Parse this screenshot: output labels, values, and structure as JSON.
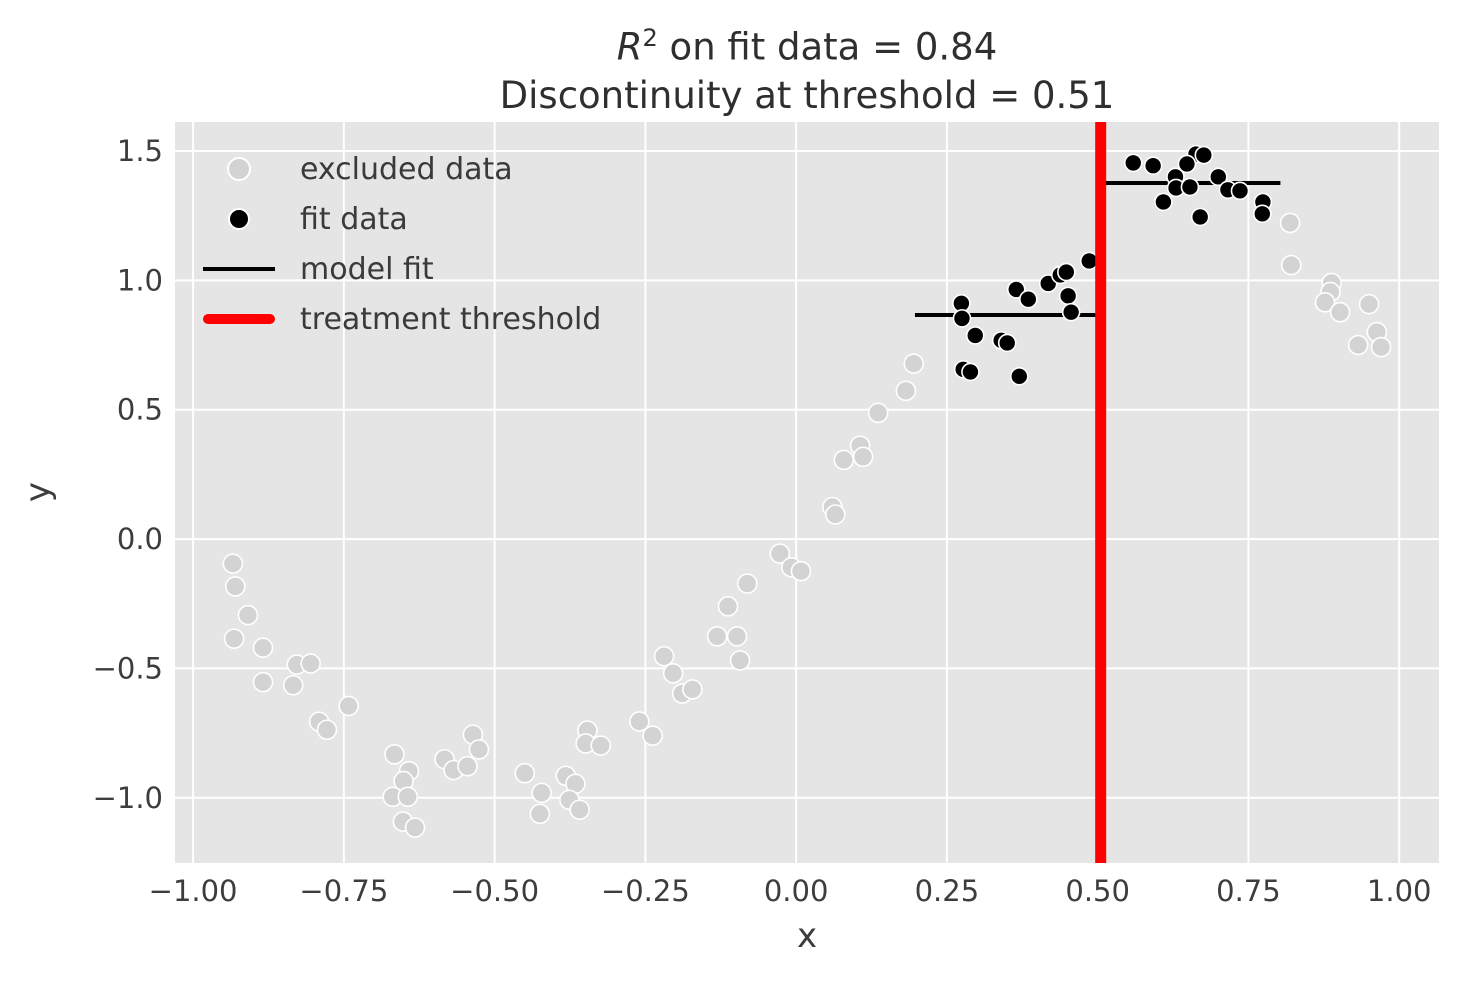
{
  "chart_data": {
    "type": "scatter",
    "title": {
      "line1_var": "R",
      "line1_sup": "2",
      "line1_rest": " on fit data = 0.84",
      "line2": "Discontinuity at threshold = 0.51"
    },
    "xlabel": "x",
    "ylabel": "y",
    "xlim": [
      -1.03,
      1.066
    ],
    "ylim": [
      -1.252,
      1.612
    ],
    "grid": true,
    "x_ticks": {
      "values": [
        -1.0,
        -0.75,
        -0.5,
        -0.25,
        0.0,
        0.25,
        0.5,
        0.75,
        1.0
      ],
      "labels": [
        "−1.00",
        "−0.75",
        "−0.50",
        "−0.25",
        "0.00",
        "0.25",
        "0.50",
        "0.75",
        "1.00"
      ]
    },
    "y_ticks": {
      "values": [
        1.5,
        1.0,
        0.5,
        0.0,
        -0.5,
        -1.0
      ],
      "labels": [
        "1.5",
        "1.0",
        "0.5",
        "0.0",
        "−0.5",
        "−1.0"
      ]
    },
    "legend": {
      "position": "upper left",
      "items": [
        {
          "label": "excluded data",
          "marker": "dot",
          "color": "#d3d3d3"
        },
        {
          "label": "fit data",
          "marker": "dot",
          "color": "#000000"
        },
        {
          "label": "model fit",
          "marker": "line",
          "color": "#000000"
        },
        {
          "label": "treatment threshold",
          "marker": "line",
          "color": "#ff0000"
        }
      ]
    },
    "series": [
      {
        "name": "excluded data",
        "marker": "circle",
        "color": "#d3d3d3",
        "edge_color": "#ffffff",
        "radius": 9.5,
        "points": [
          [
            -0.934,
            -0.095
          ],
          [
            -0.93,
            -0.183
          ],
          [
            -0.909,
            -0.294
          ],
          [
            -0.932,
            -0.385
          ],
          [
            -0.884,
            -0.42
          ],
          [
            -0.828,
            -0.485
          ],
          [
            -0.805,
            -0.481
          ],
          [
            -0.884,
            -0.553
          ],
          [
            -0.834,
            -0.565
          ],
          [
            -0.742,
            -0.645
          ],
          [
            -0.791,
            -0.706
          ],
          [
            -0.778,
            -0.737
          ],
          [
            -0.666,
            -0.832
          ],
          [
            -0.642,
            -0.897
          ],
          [
            -0.651,
            -0.935
          ],
          [
            -0.669,
            -0.996
          ],
          [
            -0.644,
            -0.996
          ],
          [
            -0.652,
            -1.092
          ],
          [
            -0.632,
            -1.115
          ],
          [
            -0.583,
            -0.851
          ],
          [
            -0.568,
            -0.893
          ],
          [
            -0.545,
            -0.878
          ],
          [
            -0.536,
            -0.756
          ],
          [
            -0.526,
            -0.813
          ],
          [
            -0.45,
            -0.905
          ],
          [
            -0.422,
            -0.981
          ],
          [
            -0.425,
            -1.062
          ],
          [
            -0.382,
            -0.915
          ],
          [
            -0.366,
            -0.946
          ],
          [
            -0.376,
            -1.008
          ],
          [
            -0.359,
            -1.046
          ],
          [
            -0.346,
            -0.74
          ],
          [
            -0.349,
            -0.79
          ],
          [
            -0.324,
            -0.798
          ],
          [
            -0.26,
            -0.705
          ],
          [
            -0.238,
            -0.76
          ],
          [
            -0.219,
            -0.453
          ],
          [
            -0.204,
            -0.519
          ],
          [
            -0.189,
            -0.597
          ],
          [
            -0.172,
            -0.581
          ],
          [
            -0.131,
            -0.376
          ],
          [
            -0.098,
            -0.376
          ],
          [
            -0.093,
            -0.469
          ],
          [
            -0.113,
            -0.26
          ],
          [
            -0.081,
            -0.172
          ],
          [
            -0.027,
            -0.056
          ],
          [
            -0.008,
            -0.109
          ],
          [
            0.008,
            -0.124
          ],
          [
            0.06,
            0.124
          ],
          [
            0.065,
            0.095
          ],
          [
            0.079,
            0.306
          ],
          [
            0.106,
            0.361
          ],
          [
            0.111,
            0.318
          ],
          [
            0.136,
            0.488
          ],
          [
            0.182,
            0.573
          ],
          [
            0.195,
            0.678
          ],
          [
            0.819,
            1.222
          ],
          [
            0.821,
            1.059
          ],
          [
            0.888,
            0.99
          ],
          [
            0.886,
            0.955
          ],
          [
            0.877,
            0.915
          ],
          [
            0.902,
            0.877
          ],
          [
            0.95,
            0.908
          ],
          [
            0.963,
            0.8
          ],
          [
            0.932,
            0.75
          ],
          [
            0.97,
            0.742
          ]
        ]
      },
      {
        "name": "fit data",
        "marker": "circle",
        "color": "#000000",
        "edge_color": "#ffffff",
        "radius": 8.5,
        "points": [
          [
            0.274,
            0.911
          ],
          [
            0.275,
            0.853
          ],
          [
            0.297,
            0.787
          ],
          [
            0.365,
            0.965
          ],
          [
            0.385,
            0.927
          ],
          [
            0.34,
            0.768
          ],
          [
            0.35,
            0.758
          ],
          [
            0.277,
            0.656
          ],
          [
            0.289,
            0.646
          ],
          [
            0.37,
            0.629
          ],
          [
            0.418,
            0.988
          ],
          [
            0.438,
            1.021
          ],
          [
            0.448,
            1.032
          ],
          [
            0.486,
            1.075
          ],
          [
            0.451,
            0.94
          ],
          [
            0.456,
            0.877
          ],
          [
            0.559,
            1.454
          ],
          [
            0.592,
            1.443
          ],
          [
            0.663,
            1.488
          ],
          [
            0.676,
            1.484
          ],
          [
            0.648,
            1.45
          ],
          [
            0.629,
            1.4
          ],
          [
            0.7,
            1.4
          ],
          [
            0.63,
            1.357
          ],
          [
            0.653,
            1.361
          ],
          [
            0.716,
            1.35
          ],
          [
            0.736,
            1.346
          ],
          [
            0.609,
            1.303
          ],
          [
            0.67,
            1.245
          ],
          [
            0.774,
            1.303
          ],
          [
            0.773,
            1.257
          ]
        ]
      }
    ],
    "model_fit": {
      "color": "#000000",
      "line_width": 4,
      "segments": [
        {
          "x_start": 0.197,
          "x_end": 0.505,
          "y": 0.866
        },
        {
          "x_start": 0.505,
          "x_end": 0.803,
          "y": 1.376
        }
      ]
    },
    "treatment_threshold": {
      "x": 0.505,
      "color": "#ff0000",
      "line_width": 11
    },
    "r_squared": 0.84,
    "discontinuity": 0.51,
    "style": {
      "axes_background": "#e5e5e5",
      "grid_color": "#ffffff",
      "text_color": "#2f2f2f",
      "tick_color": "#3d3d3d"
    }
  }
}
